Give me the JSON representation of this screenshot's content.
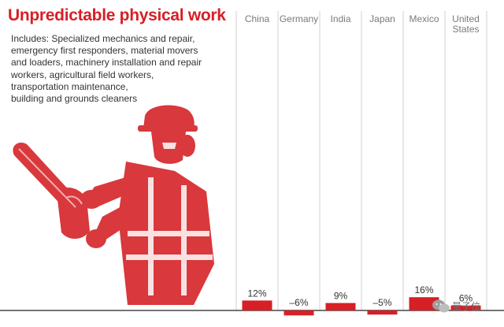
{
  "header": {
    "title": "Unpredictable physical work",
    "description_lines": [
      "Includes: Specialized mechanics and repair,",
      "emergency first responders, material movers",
      "and loaders, machinery installation and repair",
      "workers, agricultural field workers,",
      "transportation maintenance,",
      "building and grounds cleaners"
    ]
  },
  "colors": {
    "accent": "#d71f26",
    "illustration": "#d9383c",
    "text": "#333333",
    "axis_label": "#7a7a7a"
  },
  "illustration": {
    "icon": "construction-worker-with-chainsaw-icon"
  },
  "watermark": {
    "icon": "wechat-icon",
    "text": "量子位"
  },
  "chart_data": {
    "type": "bar",
    "categories": [
      [
        "China"
      ],
      [
        "Germany"
      ],
      [
        "India"
      ],
      [
        "Japan"
      ],
      [
        "Mexico"
      ],
      [
        "United",
        "States"
      ]
    ],
    "values": [
      12,
      -6,
      9,
      -5,
      16,
      6
    ],
    "value_labels": [
      "12%",
      "–6%",
      "9%",
      "–5%",
      "16%",
      "6%"
    ],
    "title": "",
    "xlabel": "",
    "ylabel": "",
    "grid": false,
    "legend": "none"
  }
}
